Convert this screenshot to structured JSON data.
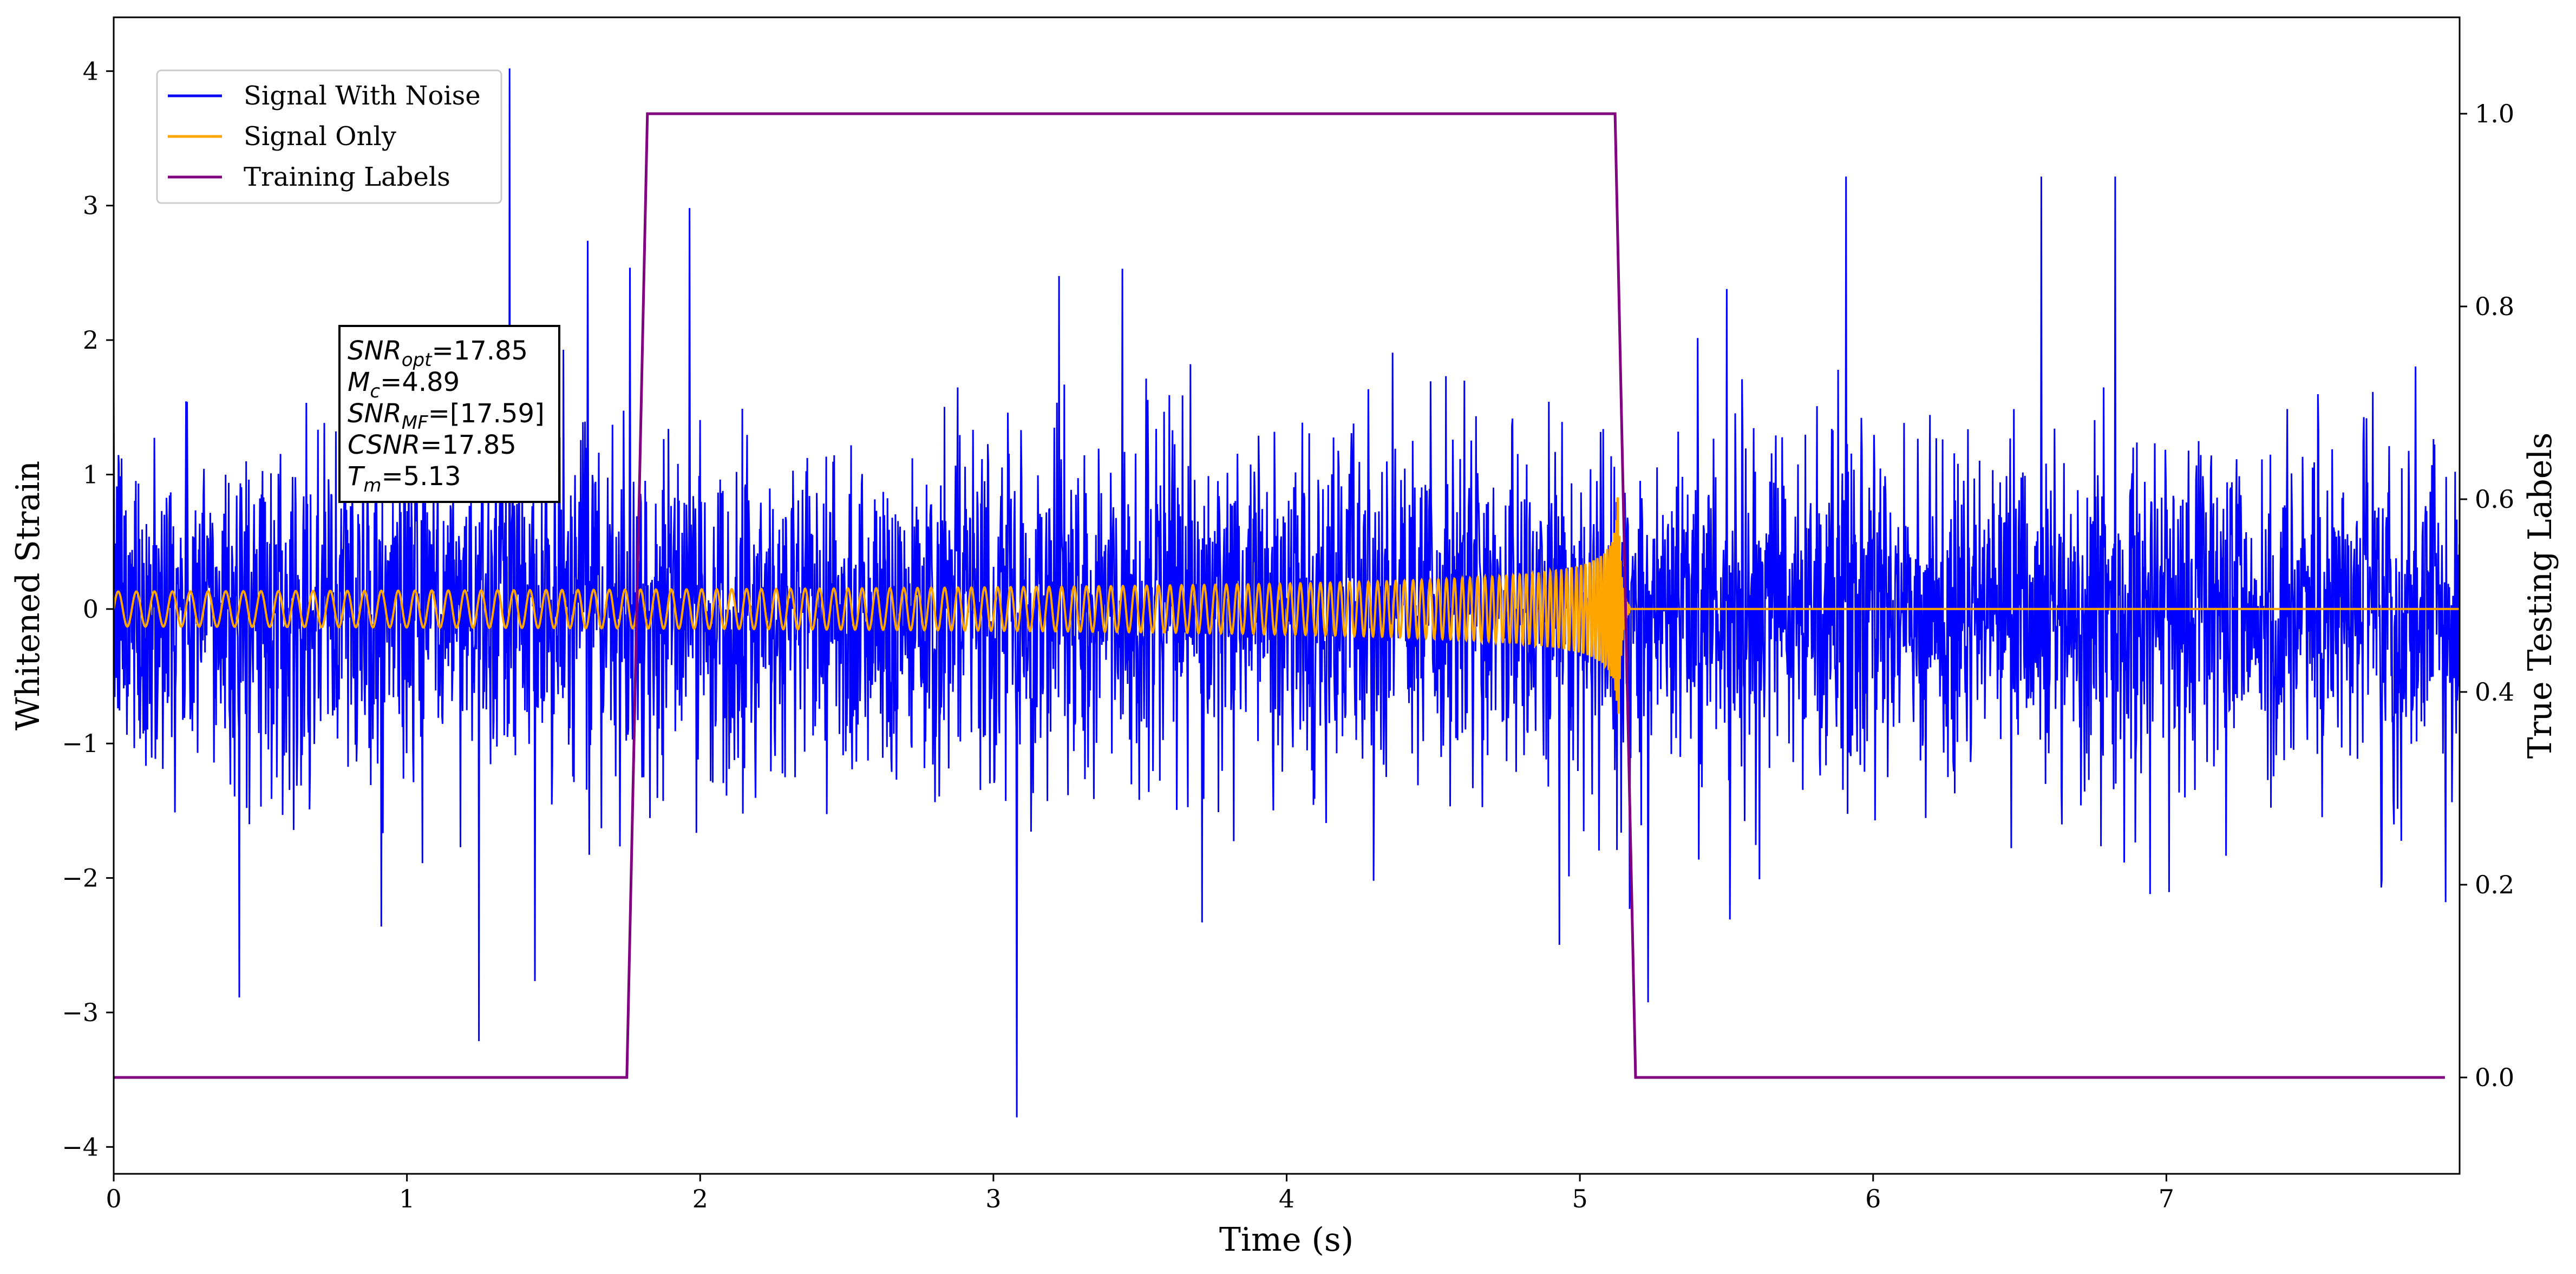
{
  "chart_data": {
    "type": "line",
    "title": "",
    "xlabel": "Time (s)",
    "ylabel": "Whitened Strain",
    "y2label": "True Testing Labels",
    "xlim": [
      0,
      8
    ],
    "ylim": [
      -4.2,
      4.4
    ],
    "y2lim": [
      -0.1,
      1.1
    ],
    "xticks": [
      0,
      1,
      2,
      3,
      4,
      5,
      6,
      7
    ],
    "xtick_labels": [
      "0",
      "1",
      "2",
      "3",
      "4",
      "5",
      "6",
      "7"
    ],
    "yticks": [
      -4,
      -3,
      -2,
      -1,
      0,
      1,
      2,
      3,
      4
    ],
    "ytick_labels": [
      "−4",
      "−3",
      "−2",
      "−1",
      "0",
      "1",
      "2",
      "3",
      "4"
    ],
    "y2ticks": [
      0.0,
      0.2,
      0.4,
      0.6,
      0.8,
      1.0
    ],
    "y2tick_labels": [
      "0.0",
      "0.2",
      "0.4",
      "0.6",
      "0.8",
      "1.0"
    ],
    "grid": false,
    "legend_position": "top-left",
    "series": [
      {
        "name": "Signal With Noise",
        "color": "#0000ff",
        "axis": "left",
        "description_values": {
          "x_start": 0,
          "x_end": 8,
          "typical_range": [
            -1.5,
            1.5
          ],
          "peak_max": 4.02,
          "peak_max_x": 1.35,
          "peak_min": -3.78,
          "peak_min_x": 3.08
        }
      },
      {
        "name": "Signal Only",
        "color": "#ffa500",
        "axis": "left",
        "description_values": {
          "x_start": 0,
          "x_end": 8,
          "amplitude_start": 0.13,
          "amplitude_at_4s": 0.32,
          "amplitude_at_5s": 0.6,
          "peak_amplitude": 1.42,
          "merger_time": 5.13,
          "post_merger_value": 0.0
        }
      },
      {
        "name": "Training Labels",
        "color": "#800080",
        "axis": "right",
        "x": [
          0.0,
          1.75,
          1.82,
          5.12,
          5.19,
          7.95
        ],
        "values": [
          0.0,
          0.0,
          1.0,
          1.0,
          0.0,
          0.0
        ]
      }
    ],
    "annotation": {
      "lines": [
        {
          "sym": "SNR",
          "sub": "opt",
          "rest": "=17.85"
        },
        {
          "sym": "M",
          "sub": "c",
          "rest": "=4.89"
        },
        {
          "sym": "SNR",
          "sub": "MF",
          "rest": "=[17.59]"
        },
        {
          "sym": "CSNR",
          "sub": "",
          "rest": "=17.85"
        },
        {
          "sym": "T",
          "sub": "m",
          "rest": "=5.13"
        }
      ]
    }
  }
}
